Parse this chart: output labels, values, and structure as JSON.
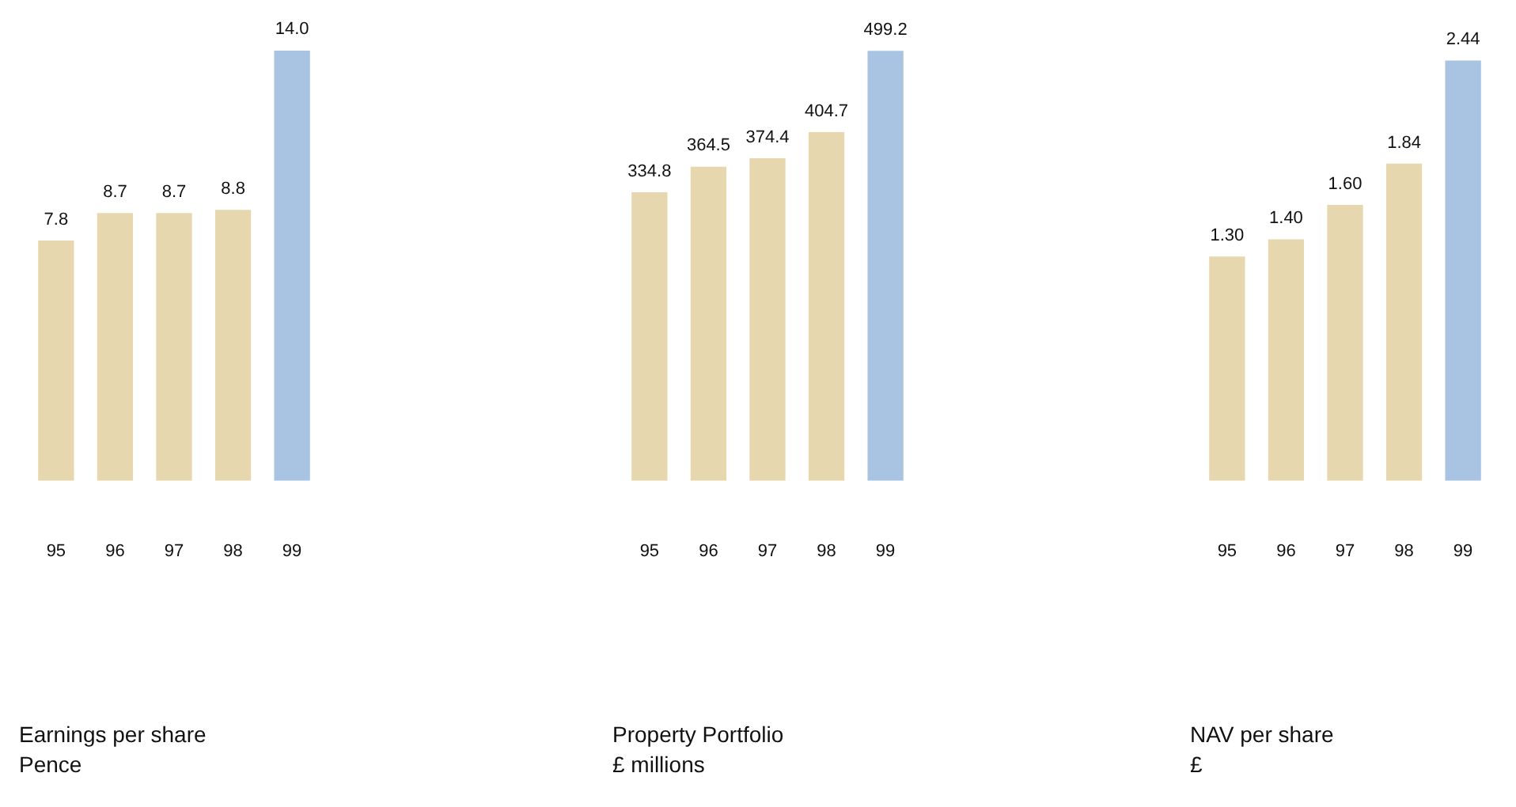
{
  "chart_data": [
    {
      "type": "bar",
      "title": "Earnings per share",
      "subtitle": "Pence",
      "categories": [
        "95",
        "96",
        "97",
        "98",
        "99"
      ],
      "values": [
        7.8,
        8.7,
        8.7,
        8.8,
        14.0
      ],
      "value_labels": [
        "7.8",
        "8.7",
        "8.7",
        "8.8",
        "14.0"
      ],
      "colors": [
        "#e6d7ae",
        "#e6d7ae",
        "#e6d7ae",
        "#e6d7ae",
        "#a9c3e3"
      ]
    },
    {
      "type": "bar",
      "title": "Property Portfolio",
      "subtitle": "£ millions",
      "categories": [
        "95",
        "96",
        "97",
        "98",
        "99"
      ],
      "values": [
        334.8,
        364.5,
        374.4,
        404.7,
        499.2
      ],
      "value_labels": [
        "334.8",
        "364.5",
        "374.4",
        "404.7",
        "499.2"
      ],
      "colors": [
        "#e6d7ae",
        "#e6d7ae",
        "#e6d7ae",
        "#e6d7ae",
        "#a9c3e3"
      ]
    },
    {
      "type": "bar",
      "title": "NAV per share",
      "subtitle": "£",
      "categories": [
        "95",
        "96",
        "97",
        "98",
        "99"
      ],
      "values": [
        1.3,
        1.4,
        1.6,
        1.84,
        2.44
      ],
      "value_labels": [
        "1.30",
        "1.40",
        "1.60",
        "1.84",
        "2.44"
      ],
      "colors": [
        "#e6d7ae",
        "#e6d7ae",
        "#e6d7ae",
        "#e6d7ae",
        "#a9c3e3"
      ]
    }
  ]
}
